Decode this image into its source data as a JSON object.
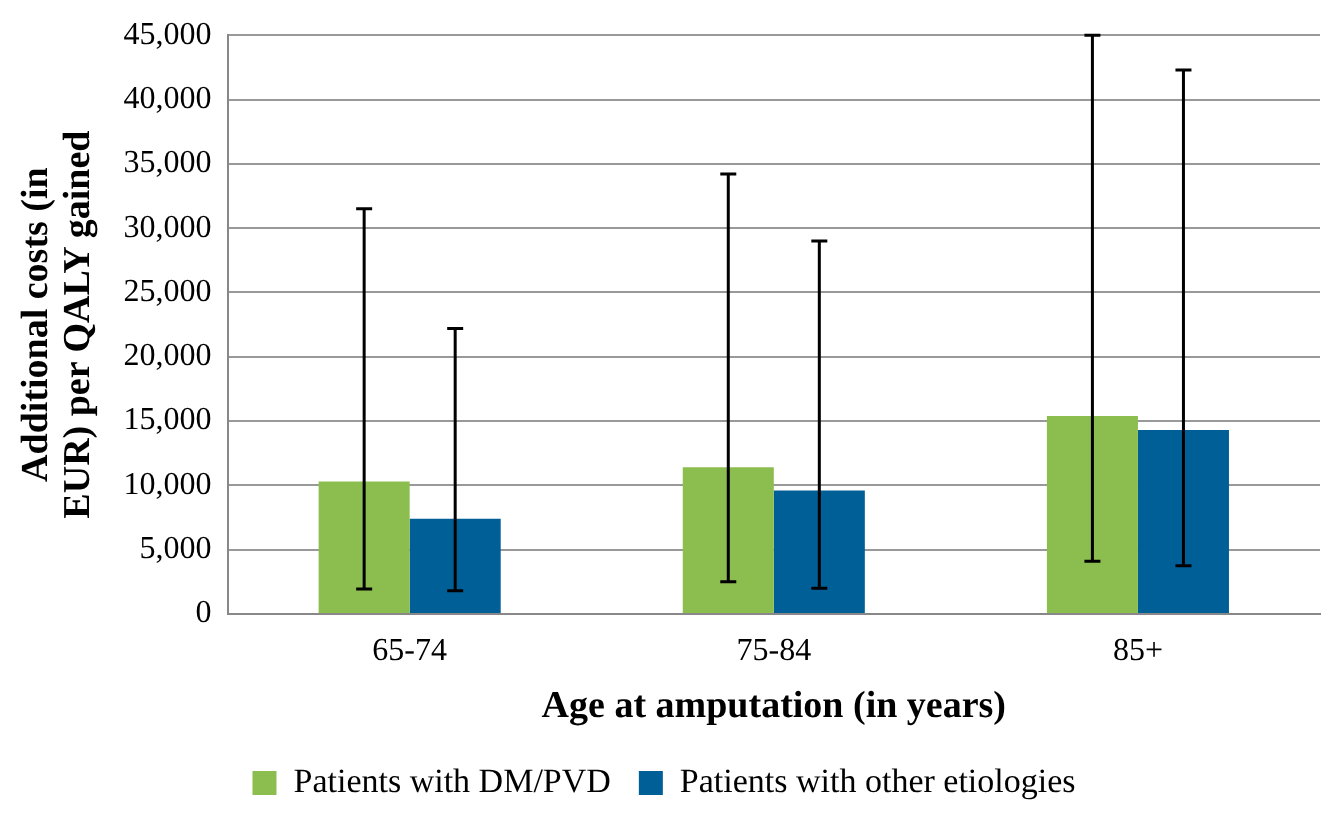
{
  "chart_data": {
    "type": "bar",
    "xlabel": "Age at amputation (in years)",
    "ylabel": "Additional costs (in EUR) per QALY gained",
    "categories": [
      "65-74",
      "75-84",
      "85+"
    ],
    "series": [
      {
        "name": "Patients with DM/PVD",
        "color": "#8cbd4f",
        "values": [
          10300,
          11400,
          15400
        ],
        "errors": [
          [
            1950,
            31500
          ],
          [
            2500,
            34200
          ],
          [
            4100,
            45000
          ]
        ]
      },
      {
        "name": "Patients with other etiologies",
        "color": "#005f97",
        "values": [
          7400,
          9600,
          14300
        ],
        "errors": [
          [
            1800,
            22200
          ],
          [
            2000,
            29000
          ],
          [
            3750,
            42300
          ]
        ]
      }
    ],
    "ylim": [
      0,
      45000
    ],
    "yticks": [
      {
        "value": 0,
        "label": "0"
      },
      {
        "value": 5000,
        "label": "5,000"
      },
      {
        "value": 10000,
        "label": "10,000"
      },
      {
        "value": 15000,
        "label": "15,000"
      },
      {
        "value": 20000,
        "label": "20,000"
      },
      {
        "value": 25000,
        "label": "25,000"
      },
      {
        "value": 30000,
        "label": "30,000"
      },
      {
        "value": 35000,
        "label": "35,000"
      },
      {
        "value": 40000,
        "label": "40,000"
      },
      {
        "value": 45000,
        "label": "45,000"
      }
    ],
    "grid": "y",
    "legend": "bottom"
  }
}
